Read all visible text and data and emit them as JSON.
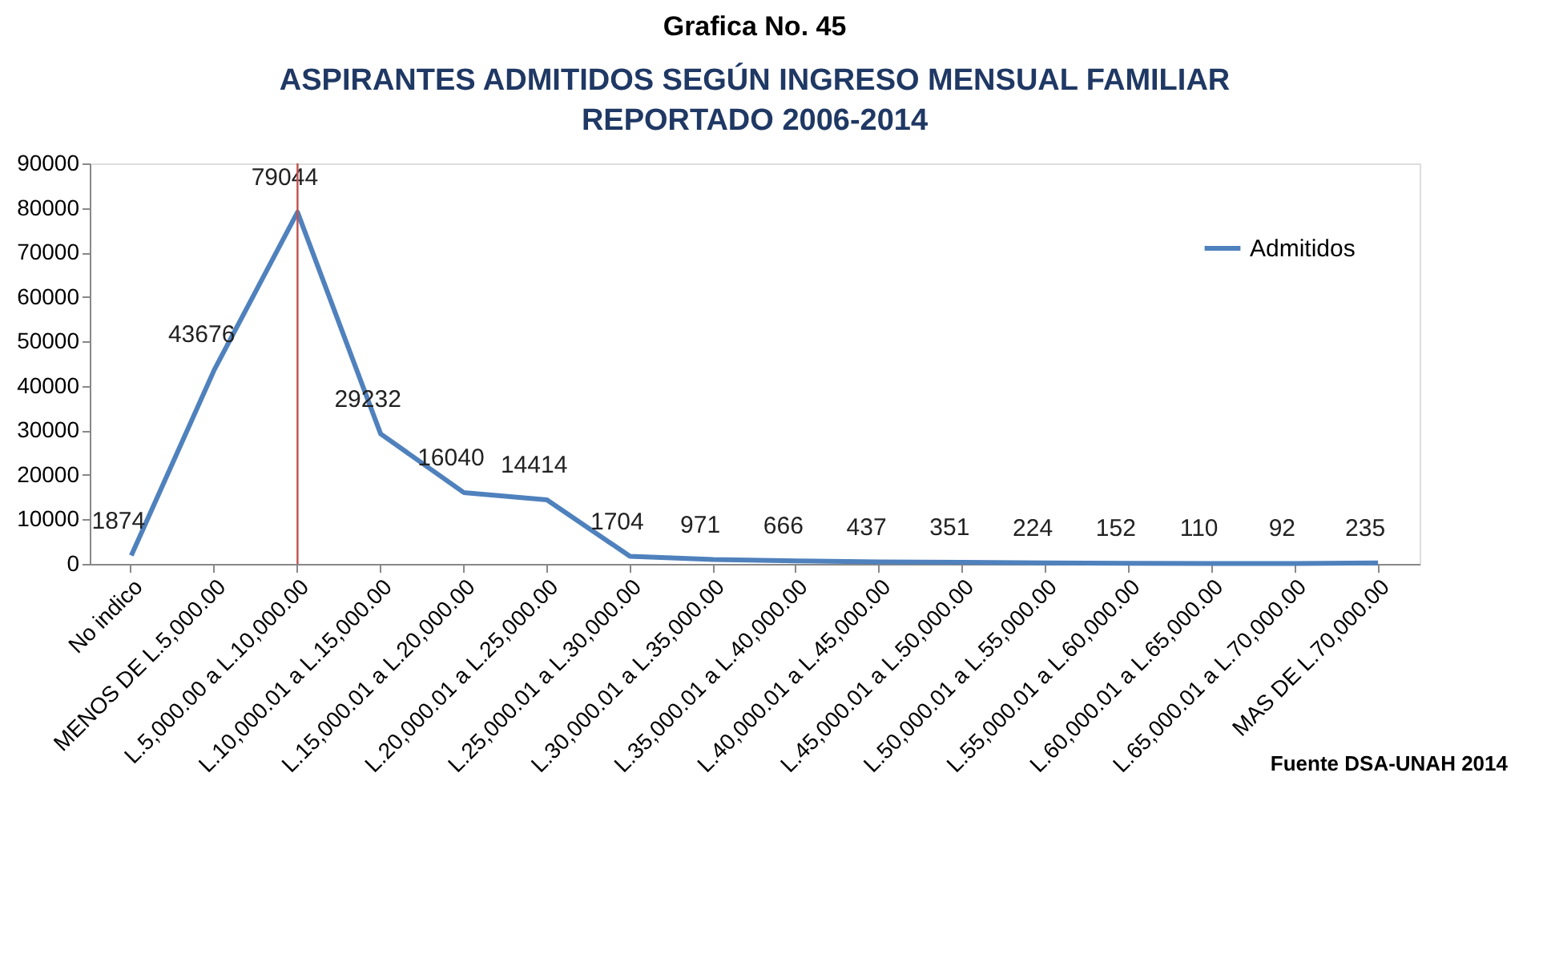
{
  "chart_data": {
    "type": "line",
    "title": [
      "ASPIRANTES ADMITIDOS SEGÚN INGRESO MENSUAL FAMILIAR",
      "REPORTADO 2006-2014"
    ],
    "categories": [
      "No indico",
      "MENOS DE L.5,000.00",
      "L.5,000.00 a L.10,000.00",
      "L.10,000.01 a L.15,000.00",
      "L.15,000.01 a L.20,000.00",
      "L.20,000.01 a L.25,000.00",
      "L.25,000.01 a L.30,000.00",
      "L.30,000.01 a L.35,000.00",
      "L.35,000.01 a L.40,000.00",
      "L.40,000.01 a L.45,000.00",
      "L.45,000.01 a L.50,000.00",
      "L.50,000.01 a L.55,000.00",
      "L.55,000.01 a L.60,000.00",
      "L.60,000.01 a L.65,000.00",
      "L.65,000.01 a L.70,000.00",
      "MAS DE L.70,000.00"
    ],
    "series": [
      {
        "name": "Admitidos",
        "color": "#4f81bd",
        "values": [
          1874,
          43676,
          79044,
          29232,
          16040,
          14414,
          1704,
          971,
          666,
          437,
          351,
          224,
          152,
          110,
          92,
          235
        ]
      }
    ],
    "ylim": [
      0,
      90000
    ],
    "yticks": [
      0,
      10000,
      20000,
      30000,
      40000,
      50000,
      60000,
      70000,
      80000,
      90000
    ],
    "grid": false,
    "legend": "top right",
    "data_labels": true,
    "marker": "none",
    "line_style": "solid",
    "ref_lines": [
      {
        "axis": "x",
        "value": "L.5,000.00 a L.10,000.00",
        "color": "#c0504d"
      }
    ],
    "annotations": [
      "Grafica No. 45",
      "Fuente DSA-UNAH 2014"
    ]
  }
}
